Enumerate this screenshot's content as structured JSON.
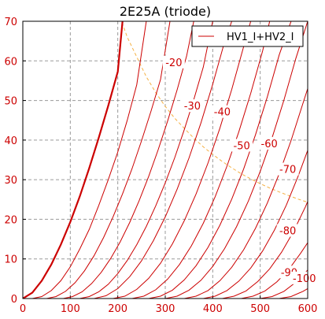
{
  "chart_data": {
    "type": "line",
    "title": "2E25A (triode)",
    "xlim": [
      0,
      600
    ],
    "ylim": [
      0,
      70
    ],
    "x_ticks": [
      0,
      100,
      200,
      300,
      400,
      500,
      600
    ],
    "y_ticks": [
      0,
      10,
      20,
      30,
      40,
      50,
      60,
      70
    ],
    "grid": true,
    "legend": {
      "placement": "top-right",
      "entries": [
        "HV1_I+HV2_I"
      ]
    },
    "series": [
      {
        "label": "0",
        "x": [
          0,
          20,
          40,
          60,
          80,
          100,
          120,
          140,
          160,
          180,
          200,
          210
        ],
        "y": [
          0,
          1.5,
          4.5,
          8.6,
          13.6,
          19.3,
          25.8,
          33,
          40.6,
          48.7,
          57.3,
          70
        ]
      },
      {
        "x": [
          20,
          40,
          60,
          80,
          100,
          120,
          140,
          160,
          180,
          200,
          220,
          240,
          260
        ],
        "y": [
          0,
          0.5,
          2,
          4.5,
          8,
          12.5,
          17.5,
          23.5,
          30,
          37,
          45,
          54,
          70
        ]
      },
      {
        "x": [
          50,
          70,
          90,
          110,
          130,
          150,
          170,
          190,
          210,
          230,
          250,
          270,
          290,
          310
        ],
        "y": [
          0,
          0.5,
          1.8,
          4,
          7,
          10.8,
          15.4,
          20.6,
          26.4,
          32.8,
          39.8,
          47.3,
          55.3,
          70
        ]
      },
      {
        "label": "-20",
        "x": [
          85,
          105,
          125,
          145,
          165,
          185,
          205,
          225,
          245,
          265,
          285,
          305,
          325,
          345,
          360
        ],
        "y": [
          0,
          0.5,
          1.7,
          3.8,
          6.6,
          10.1,
          14.3,
          19.2,
          24.7,
          30.8,
          37.5,
          44.8,
          52.7,
          61.2,
          70
        ]
      },
      {
        "label": "-30",
        "x": [
          120,
          140,
          160,
          180,
          200,
          220,
          240,
          260,
          280,
          300,
          320,
          340,
          360,
          380,
          400
        ],
        "y": [
          0,
          0.5,
          1.7,
          3.6,
          6.3,
          9.6,
          13.6,
          18.2,
          23.4,
          29.2,
          35.6,
          42.6,
          50.2,
          58.4,
          70
        ]
      },
      {
        "label": "-40",
        "x": [
          150,
          175,
          200,
          225,
          250,
          275,
          300,
          325,
          350,
          375,
          400,
          425,
          440
        ],
        "y": [
          0,
          0.7,
          2.5,
          5.5,
          9.5,
          14.6,
          20.6,
          27.6,
          35.5,
          44.3,
          54.1,
          64.8,
          70
        ]
      },
      {
        "label": "-50",
        "x": [
          190,
          215,
          240,
          265,
          290,
          315,
          340,
          365,
          390,
          415,
          440,
          465,
          480
        ],
        "y": [
          0,
          0.6,
          2.3,
          5.1,
          8.9,
          13.8,
          19.6,
          26.4,
          34.2,
          43,
          52.8,
          63.6,
          70
        ]
      },
      {
        "label": "-60",
        "x": [
          230,
          255,
          280,
          305,
          330,
          355,
          380,
          405,
          430,
          455,
          480,
          505,
          520
        ],
        "y": [
          0,
          0.6,
          2.2,
          4.9,
          8.6,
          13.3,
          19,
          25.7,
          33.4,
          42.1,
          51.8,
          62.5,
          70
        ]
      },
      {
        "label": "-70",
        "x": [
          265,
          290,
          315,
          340,
          365,
          390,
          415,
          440,
          465,
          490,
          515,
          540,
          565
        ],
        "y": [
          0,
          0.6,
          2.1,
          4.7,
          8.3,
          12.9,
          18.5,
          25.1,
          32.7,
          41.3,
          50.9,
          61.5,
          70
        ]
      },
      {
        "x": [
          300,
          325,
          350,
          375,
          400,
          425,
          450,
          475,
          500,
          525,
          550,
          575,
          600
        ],
        "y": [
          0,
          0.6,
          2.1,
          4.6,
          8.1,
          12.6,
          18.1,
          24.6,
          32.1,
          40.6,
          50.1,
          60.6,
          70
        ]
      },
      {
        "label": "-80",
        "x": [
          340,
          365,
          390,
          415,
          440,
          465,
          490,
          515,
          540,
          565,
          590,
          600
        ],
        "y": [
          0,
          0.6,
          2,
          4.5,
          7.9,
          12.3,
          17.7,
          24.1,
          31.5,
          39.9,
          49.3,
          53
        ]
      },
      {
        "x": [
          380,
          405,
          430,
          455,
          480,
          505,
          530,
          555,
          580,
          600
        ],
        "y": [
          0,
          0.6,
          2,
          4.4,
          7.7,
          12,
          17.3,
          23.6,
          30.9,
          37.4
        ]
      },
      {
        "label": "-90",
        "x": [
          420,
          445,
          470,
          495,
          520,
          545,
          570,
          595,
          600
        ],
        "y": [
          0,
          0.6,
          1.9,
          4.3,
          7.5,
          11.7,
          16.9,
          23.1,
          24.5
        ]
      },
      {
        "label": "-100",
        "x": [
          460,
          485,
          510,
          535,
          560,
          585,
          600
        ],
        "y": [
          0,
          0.6,
          1.9,
          4.2,
          7.3,
          11.4,
          14.1
        ]
      },
      {
        "x": [
          500,
          525,
          550,
          575,
          600
        ],
        "y": [
          0,
          0.5,
          1.8,
          4.1,
          7.2
        ]
      },
      {
        "x": [
          540,
          565,
          590,
          600
        ],
        "y": [
          0,
          0.5,
          1.8,
          2.5
        ]
      }
    ],
    "labels": [
      {
        "text": "-20",
        "x": 318,
        "y": 59.5
      },
      {
        "text": "-30",
        "x": 357,
        "y": 48.5
      },
      {
        "text": "-40",
        "x": 420,
        "y": 47
      },
      {
        "text": "-50",
        "x": 461,
        "y": 38.5
      },
      {
        "text": "-60",
        "x": 519,
        "y": 39
      },
      {
        "text": "-70",
        "x": 558,
        "y": 32.5
      },
      {
        "text": "-80",
        "x": 558,
        "y": 17
      },
      {
        "text": "-90",
        "x": 561,
        "y": 6.5
      },
      {
        "text": "-100",
        "x": 593,
        "y": 5
      }
    ],
    "power_limit": {
      "x": [
        205,
        220,
        240,
        260,
        280,
        300,
        320,
        340,
        360,
        380,
        400,
        420,
        440,
        460,
        480,
        500,
        520,
        540,
        560,
        580,
        600
      ],
      "y": [
        71,
        66,
        61,
        56,
        52,
        48.5,
        45.5,
        43,
        40.5,
        38.3,
        36.4,
        34.6,
        33,
        31.5,
        30.2,
        29,
        27.9,
        26.9,
        26,
        25.1,
        24.3
      ]
    }
  }
}
